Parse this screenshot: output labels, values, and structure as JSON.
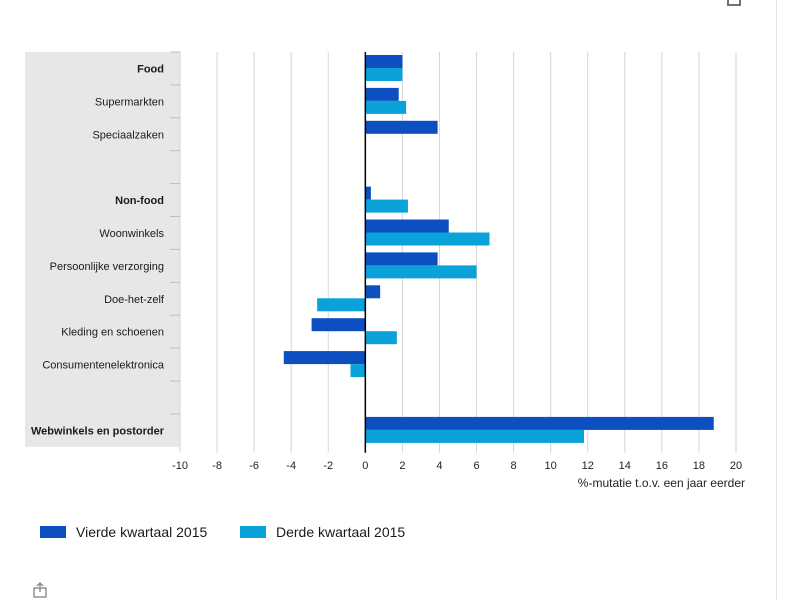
{
  "chart_data": {
    "type": "bar",
    "orientation": "horizontal",
    "categories": [
      "Food",
      "Supermarkten",
      "Speciaalzaken",
      "",
      "Non-food",
      "Woonwinkels",
      "Persoonlijke verzorging",
      "Doe-het-zelf",
      "Kleding en schoenen",
      "Consumentenelektronica",
      "",
      "Webwinkels en postorder"
    ],
    "bold_categories": [
      "Food",
      "Non-food",
      "Webwinkels en postorder"
    ],
    "series": [
      {
        "name": "Vierde kwartaal 2015",
        "color": "#0b4fc1",
        "values": [
          2.0,
          1.8,
          3.9,
          null,
          0.3,
          4.5,
          3.9,
          0.8,
          -2.9,
          -4.4,
          null,
          18.8
        ]
      },
      {
        "name": "Derde kwartaal 2015",
        "color": "#0aa2d8",
        "values": [
          2.0,
          2.2,
          null,
          null,
          2.3,
          6.7,
          6.0,
          -2.6,
          1.7,
          -0.8,
          null,
          11.8
        ]
      }
    ],
    "xlim": [
      -10,
      20
    ],
    "xticks": [
      "-10",
      "-8",
      "-6",
      "-4",
      "-2",
      "0",
      "2",
      "4",
      "6",
      "8",
      "10",
      "12",
      "14",
      "16",
      "18",
      "20"
    ],
    "xlabel": "%-mutatie t.o.v. een jaar eerder",
    "grid": true,
    "legend_position": "bottom-left"
  },
  "colors": {
    "gridline": "#d6d6d6",
    "label_panel": "#e7e7e7",
    "zero_axis": "#000000"
  },
  "icons": {
    "top_right": "minimize-icon",
    "bottom_left": "share-icon"
  }
}
